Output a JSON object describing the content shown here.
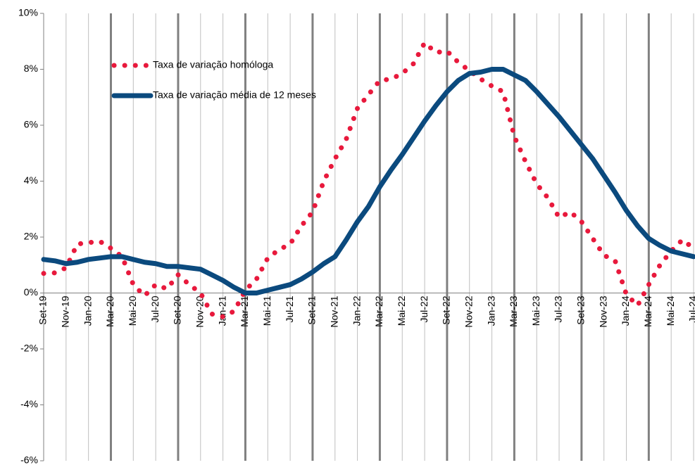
{
  "chart_data": {
    "type": "line",
    "categories": [
      "Set-19",
      null,
      "Nov-19",
      null,
      "Jan-20",
      null,
      "Mar-20",
      null,
      "Mai-20",
      null,
      "Jul-20",
      null,
      "Set-20",
      null,
      "Nov-20",
      null,
      "Jan-21",
      null,
      "Mar-21",
      null,
      "Mai-21",
      null,
      "Jul-21",
      null,
      "Set-21",
      null,
      "Nov-21",
      null,
      "Jan-22",
      null,
      "Mar-22",
      null,
      "Mai-22",
      null,
      "Jul-22",
      null,
      "Set-22",
      null,
      "Nov-22",
      null,
      "Jan-23",
      null,
      "Mar-23",
      null,
      "Mai-23",
      null,
      "Jul-23",
      null,
      "Set-23",
      null,
      "Nov-23",
      null,
      "Jan-24",
      null,
      "Mar-24",
      null,
      "Mai-24",
      null,
      "Jul-24"
    ],
    "series": [
      {
        "name": "Taxa de variação homóloga",
        "color": "#e8193c",
        "style": "dotted",
        "values": [
          0.7,
          0.72,
          0.9,
          1.75,
          1.8,
          1.85,
          1.6,
          1.3,
          0.3,
          -0.1,
          0.3,
          0.15,
          0.65,
          0.3,
          0.0,
          -0.75,
          -0.85,
          -0.65,
          0.1,
          0.5,
          1.25,
          1.55,
          1.75,
          2.4,
          2.9,
          4.0,
          4.8,
          5.5,
          6.6,
          7.1,
          7.6,
          7.65,
          7.85,
          8.2,
          8.95,
          8.6,
          8.65,
          8.25,
          7.95,
          7.65,
          7.4,
          7.2,
          5.6,
          4.7,
          3.9,
          3.4,
          2.7,
          2.9,
          2.55,
          1.95,
          1.35,
          1.15,
          -0.05,
          -0.45,
          0.3,
          1.0,
          1.5,
          1.9,
          1.6
        ]
      },
      {
        "name": "Taxa de variação média de 12 meses",
        "color": "#0b4a7e",
        "style": "solid",
        "values": [
          1.2,
          1.15,
          1.05,
          1.1,
          1.2,
          1.25,
          1.3,
          1.3,
          1.2,
          1.1,
          1.05,
          0.95,
          0.95,
          0.9,
          0.85,
          0.65,
          0.45,
          0.2,
          0.0,
          0.0,
          0.1,
          0.2,
          0.3,
          0.5,
          0.75,
          1.05,
          1.3,
          1.9,
          2.55,
          3.1,
          3.8,
          4.4,
          4.95,
          5.55,
          6.15,
          6.7,
          7.2,
          7.6,
          7.85,
          7.9,
          8.0,
          8.0,
          7.8,
          7.6,
          7.2,
          6.75,
          6.3,
          5.8,
          5.3,
          4.8,
          4.2,
          3.6,
          2.95,
          2.4,
          1.95,
          1.7,
          1.5,
          1.4,
          1.3
        ]
      }
    ],
    "ylim": [
      -6,
      10
    ],
    "yticks": [
      {
        "value": -6,
        "label": "-6%"
      },
      {
        "value": -4,
        "label": "-4%"
      },
      {
        "value": -2,
        "label": "-2%"
      },
      {
        "value": 0,
        "label": "0%"
      },
      {
        "value": 2,
        "label": "2%"
      },
      {
        "value": 4,
        "label": "4%"
      },
      {
        "value": 6,
        "label": "6%"
      },
      {
        "value": 8,
        "label": "8%"
      },
      {
        "value": 10,
        "label": "10%"
      }
    ],
    "grid": false,
    "legend": "top-left"
  }
}
